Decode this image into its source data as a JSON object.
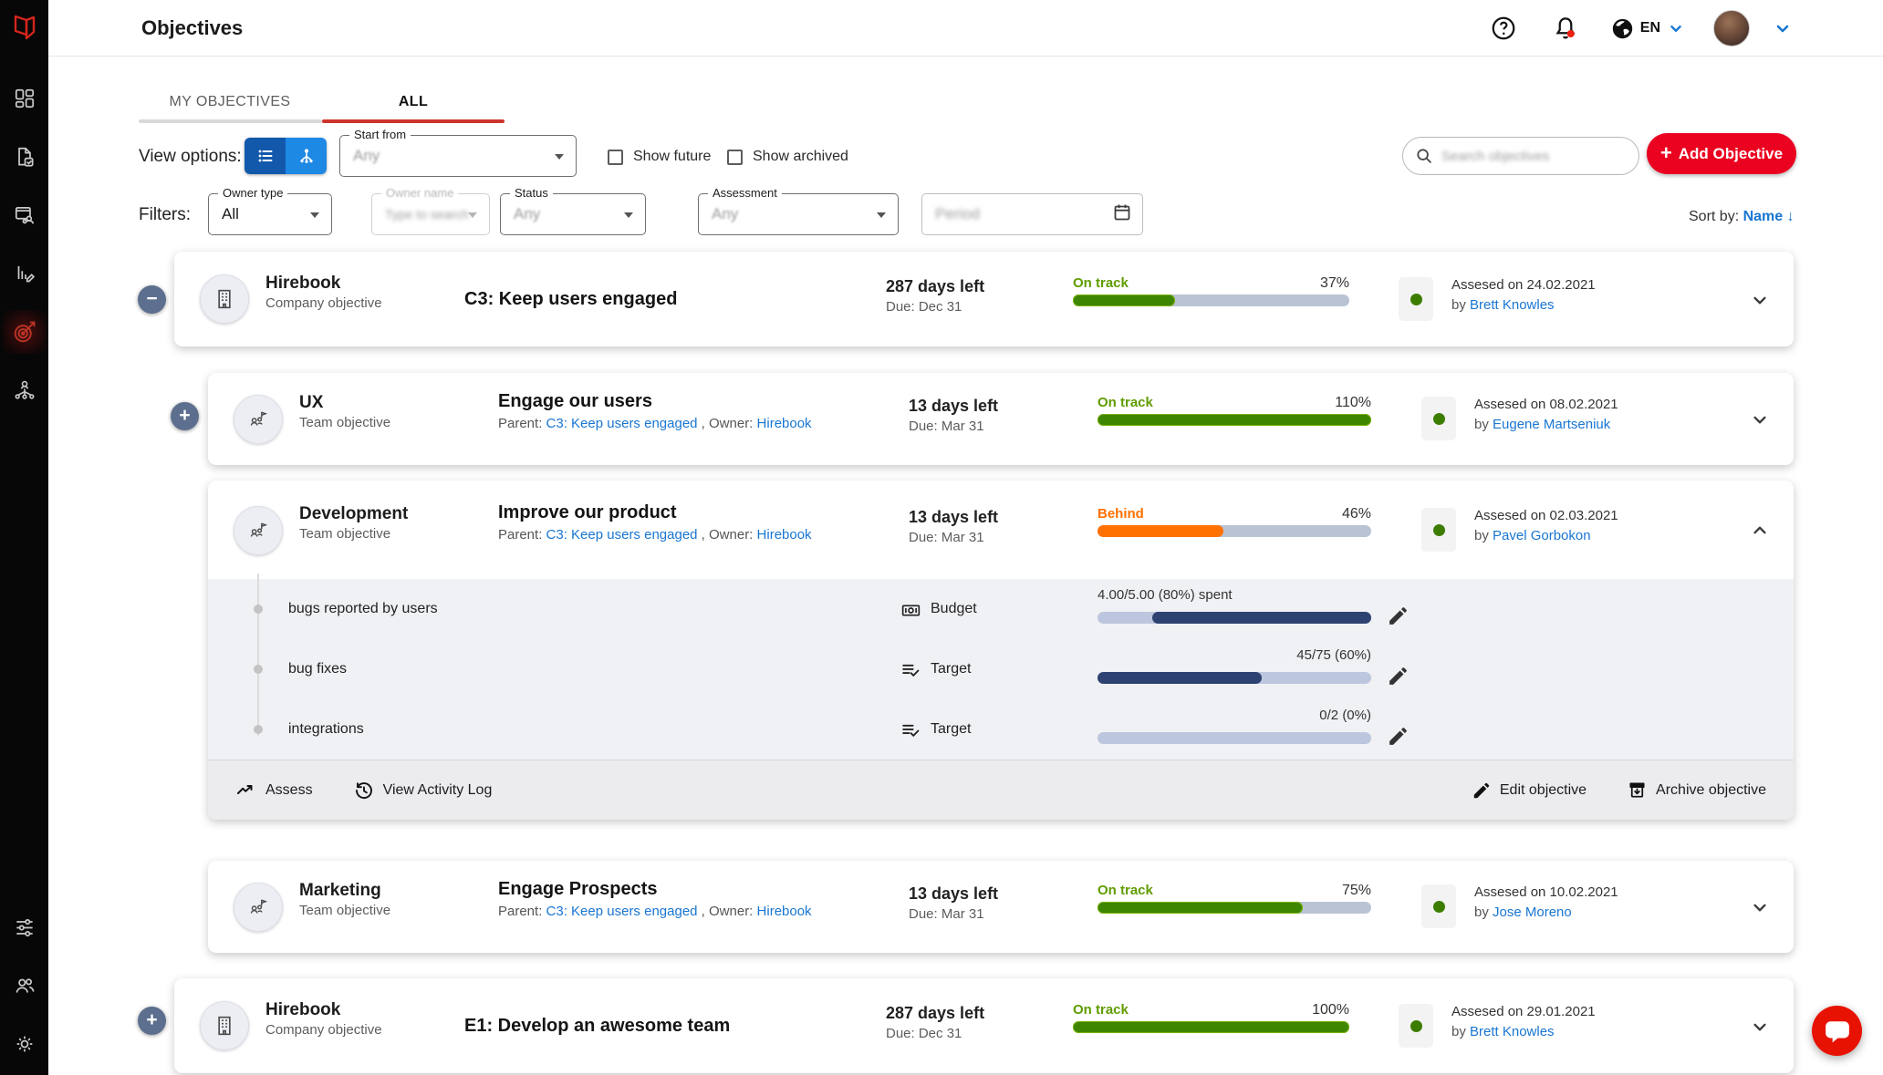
{
  "colors": {
    "brand_red": "#ea0220",
    "link_blue": "#1976d2",
    "on_track_green": "#5f9c00",
    "bar_green": "#3e8500",
    "behind_orange": "#ff7101",
    "bar_navy": "#2e4272",
    "tab_red": "#cd352c"
  },
  "header": {
    "title": "Objectives",
    "language": "EN"
  },
  "sidebar": {
    "active_item": "objectives",
    "items_top": [
      "dashboard",
      "check-ins",
      "meetings",
      "kpis",
      "objectives",
      "org-chart"
    ],
    "items_bottom": [
      "preferences",
      "users",
      "settings"
    ]
  },
  "tabs": [
    {
      "label": "MY OBJECTIVES",
      "active": false
    },
    {
      "label": "ALL",
      "active": true
    }
  ],
  "toolbar": {
    "view_options_label": "View options:",
    "start_from_label": "Start from",
    "start_from_value": "Any",
    "show_future_label": "Show future",
    "show_archived_label": "Show archived",
    "search_placeholder": "Search objectives",
    "add_button_plus": "+",
    "add_button_label": "Add Objective"
  },
  "filters": {
    "label": "Filters:",
    "owner_type_label": "Owner type",
    "owner_type_value": "All",
    "owner_name_label": "Owner name",
    "owner_name_value": "Type to search",
    "status_label": "Status",
    "status_value": "Any",
    "assessment_label": "Assessment",
    "assessment_value": "Any",
    "period_placeholder": "Period",
    "sort_label": "Sort by:",
    "sort_value": "Name",
    "sort_direction": "↓"
  },
  "objectives": [
    {
      "owner": "Hirebook",
      "owner_type": "Company objective",
      "expander": "−",
      "avatar": "company",
      "title": "C3: Keep users engaged",
      "days_left": "287 days left",
      "due": "Due: Dec 31",
      "status": "On track",
      "percent": "37%",
      "fill_pct": 37,
      "status_kind": "on-track",
      "assessed": "Assesed on 24.02.2021",
      "assessed_by_prefix": "by",
      "assessed_by": "Brett Knowles",
      "expanded": false
    },
    {
      "owner": "UX",
      "owner_type": "Team objective",
      "expander": "+",
      "avatar": "team",
      "title": "Engage our users",
      "parent_label": "Parent:",
      "parent_link": "C3: Keep users engaged",
      "owner_label": ", Owner:",
      "owner_link": "Hirebook",
      "days_left": "13 days left",
      "due": "Due: Mar 31",
      "status": "On track",
      "percent": "110%",
      "fill_pct": 100,
      "status_kind": "on-track",
      "assessed": "Assesed on 08.02.2021",
      "assessed_by_prefix": "by",
      "assessed_by": "Eugene Martseniuk",
      "expanded": false
    },
    {
      "owner": "Development",
      "owner_type": "Team objective",
      "avatar": "team",
      "title": "Improve our product",
      "parent_label": "Parent:",
      "parent_link": "C3: Keep users engaged",
      "owner_label": ", Owner:",
      "owner_link": "Hirebook",
      "days_left": "13 days left",
      "due": "Due: Mar 31",
      "status": "Behind",
      "percent": "46%",
      "fill_pct": 46,
      "status_kind": "behind",
      "assessed": "Assesed on 02.03.2021",
      "assessed_by_prefix": "by",
      "assessed_by": "Pavel Gorbokon",
      "expanded": true,
      "key_results": [
        {
          "name": "bugs reported by users",
          "type": "Budget",
          "icon": "budget",
          "value": "4.00/5.00 (80%) spent",
          "fill_pct": 80,
          "anchor": "right",
          "value_align": "left"
        },
        {
          "name": "bug fixes",
          "type": "Target",
          "icon": "target",
          "value": "45/75 (60%)",
          "fill_pct": 60,
          "anchor": "left",
          "value_align": "right"
        },
        {
          "name": "integrations",
          "type": "Target",
          "icon": "target",
          "value": "0/2 (0%)",
          "fill_pct": 0,
          "anchor": "left",
          "value_align": "right"
        }
      ],
      "actions": {
        "assess": "Assess",
        "activity": "View Activity Log",
        "edit": "Edit objective",
        "archive": "Archive objective"
      }
    },
    {
      "owner": "Marketing",
      "owner_type": "Team objective",
      "avatar": "team",
      "title": "Engage Prospects",
      "parent_label": "Parent:",
      "parent_link": "C3: Keep users engaged",
      "owner_label": ", Owner:",
      "owner_link": "Hirebook",
      "days_left": "13 days left",
      "due": "Due: Mar 31",
      "status": "On track",
      "percent": "75%",
      "fill_pct": 75,
      "status_kind": "on-track",
      "assessed": "Assesed on 10.02.2021",
      "assessed_by_prefix": "by",
      "assessed_by": "Jose Moreno",
      "expanded": false
    },
    {
      "owner": "Hirebook",
      "owner_type": "Company objective",
      "expander": "+",
      "avatar": "company",
      "title": "E1: Develop an awesome team",
      "days_left": "287 days left",
      "due": "Due: Dec 31",
      "status": "On track",
      "percent": "100%",
      "fill_pct": 100,
      "status_kind": "on-track",
      "assessed": "Assesed on 29.01.2021",
      "assessed_by_prefix": "by",
      "assessed_by": "Brett Knowles",
      "expanded": false
    }
  ]
}
